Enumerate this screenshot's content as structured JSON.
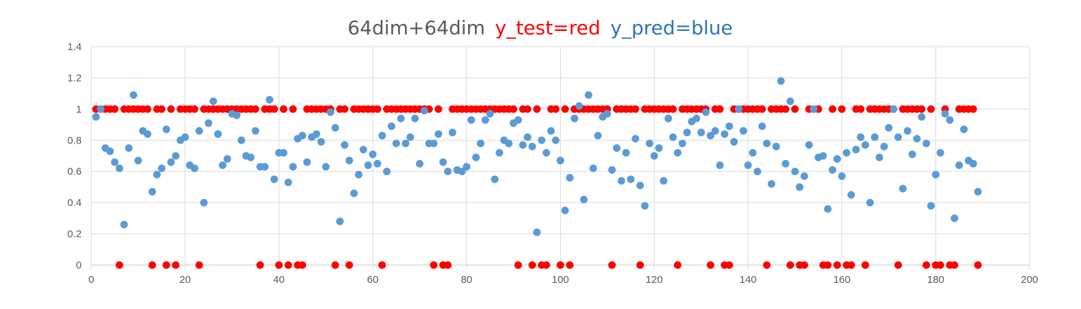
{
  "colors": {
    "y_test": "#ff0000",
    "y_pred": "#5b9bd5",
    "title_main": "#595959",
    "title_pred": "#2e75b6",
    "grid": "#d9d9d9",
    "tick_label": "#595959"
  },
  "chart_data": {
    "type": "scatter",
    "title_parts": [
      "64dim+64dim",
      "y_test=red",
      "y_pred=blue"
    ],
    "xlabel": "",
    "ylabel": "",
    "xlim": [
      0,
      200
    ],
    "ylim": [
      0,
      1.4
    ],
    "x_ticks": [
      0,
      20,
      40,
      60,
      80,
      100,
      120,
      140,
      160,
      180,
      200
    ],
    "y_ticks": [
      0,
      0.2,
      0.4,
      0.6,
      0.8,
      1,
      1.2,
      1.4
    ],
    "y_tick_labels": [
      "0",
      "0.2",
      "0.4",
      "0.6",
      "0.8",
      "1",
      "1.2",
      "1.4"
    ],
    "grid": true,
    "series": [
      {
        "key": "y_test",
        "x": [
          1,
          2,
          3,
          4,
          5,
          6,
          7,
          8,
          9,
          10,
          11,
          12,
          13,
          14,
          15,
          16,
          17,
          18,
          19,
          20,
          21,
          22,
          23,
          24,
          25,
          26,
          27,
          28,
          29,
          30,
          31,
          32,
          33,
          34,
          35,
          36,
          37,
          38,
          39,
          40,
          41,
          42,
          43,
          44,
          45,
          46,
          47,
          48,
          49,
          50,
          51,
          52,
          53,
          54,
          55,
          56,
          57,
          58,
          59,
          60,
          61,
          62,
          63,
          64,
          65,
          66,
          67,
          68,
          69,
          70,
          71,
          72,
          73,
          74,
          75,
          76,
          77,
          78,
          79,
          80,
          81,
          82,
          83,
          84,
          85,
          86,
          87,
          88,
          89,
          90,
          91,
          92,
          93,
          94,
          95,
          96,
          97,
          98,
          99,
          100,
          101,
          102,
          103,
          104,
          105,
          106,
          107,
          108,
          109,
          110,
          111,
          112,
          113,
          114,
          115,
          116,
          117,
          118,
          119,
          120,
          121,
          122,
          123,
          124,
          125,
          126,
          127,
          128,
          129,
          130,
          131,
          132,
          133,
          134,
          135,
          136,
          137,
          138,
          139,
          140,
          141,
          142,
          143,
          144,
          145,
          146,
          147,
          148,
          149,
          150,
          151,
          152,
          153,
          154,
          155,
          156,
          157,
          158,
          159,
          160,
          161,
          162,
          163,
          164,
          165,
          166,
          167,
          168,
          169,
          170,
          171,
          172,
          173,
          174,
          175,
          176,
          177,
          178,
          179,
          180,
          181,
          182,
          183,
          184,
          185,
          186,
          187,
          188,
          189
        ],
        "y": [
          1,
          1,
          1,
          1,
          1,
          0,
          1,
          1,
          1,
          1,
          1,
          1,
          0,
          1,
          1,
          0,
          1,
          0,
          1,
          1,
          1,
          1,
          0,
          1,
          1,
          1,
          1,
          1,
          1,
          1,
          1,
          1,
          1,
          1,
          1,
          0,
          1,
          1,
          1,
          0,
          1,
          0,
          1,
          0,
          0,
          1,
          1,
          1,
          1,
          1,
          1,
          0,
          1,
          1,
          0,
          1,
          1,
          1,
          1,
          1,
          1,
          0,
          1,
          1,
          1,
          1,
          1,
          1,
          1,
          1,
          1,
          1,
          0,
          1,
          0,
          0,
          1,
          1,
          1,
          1,
          1,
          1,
          1,
          1,
          1,
          1,
          1,
          1,
          1,
          1,
          0,
          1,
          1,
          0,
          1,
          0,
          0,
          1,
          1,
          0,
          1,
          0,
          1,
          1,
          1,
          1,
          1,
          1,
          1,
          1,
          0,
          1,
          1,
          1,
          1,
          1,
          0,
          1,
          1,
          1,
          1,
          1,
          1,
          1,
          0,
          1,
          1,
          1,
          1,
          1,
          1,
          0,
          1,
          1,
          0,
          0,
          1,
          1,
          1,
          1,
          1,
          1,
          1,
          0,
          1,
          1,
          1,
          1,
          0,
          1,
          0,
          0,
          1,
          1,
          1,
          0,
          0,
          1,
          0,
          1,
          0,
          0,
          1,
          1,
          0,
          1,
          1,
          1,
          1,
          1,
          1,
          0,
          1,
          1,
          1,
          1,
          1,
          0,
          1,
          0,
          0,
          1,
          0,
          0,
          1,
          1,
          1,
          1,
          0
        ]
      },
      {
        "key": "y_pred",
        "x": [
          1,
          2,
          3,
          4,
          5,
          6,
          7,
          8,
          9,
          10,
          11,
          12,
          13,
          14,
          15,
          16,
          17,
          18,
          19,
          20,
          21,
          22,
          23,
          24,
          25,
          26,
          27,
          28,
          29,
          30,
          31,
          32,
          33,
          34,
          35,
          36,
          37,
          38,
          39,
          40,
          41,
          42,
          43,
          44,
          45,
          46,
          47,
          48,
          49,
          50,
          51,
          52,
          53,
          54,
          55,
          56,
          57,
          58,
          59,
          60,
          61,
          62,
          63,
          64,
          65,
          66,
          67,
          68,
          69,
          70,
          71,
          72,
          73,
          74,
          75,
          76,
          77,
          78,
          79,
          80,
          81,
          82,
          83,
          84,
          85,
          86,
          87,
          88,
          89,
          90,
          91,
          92,
          93,
          94,
          95,
          96,
          97,
          98,
          99,
          100,
          101,
          102,
          103,
          104,
          105,
          106,
          107,
          108,
          109,
          110,
          111,
          112,
          113,
          114,
          115,
          116,
          117,
          118,
          119,
          120,
          121,
          122,
          123,
          124,
          125,
          126,
          127,
          128,
          129,
          130,
          131,
          132,
          133,
          134,
          135,
          136,
          137,
          138,
          139,
          140,
          141,
          142,
          143,
          144,
          145,
          146,
          147,
          148,
          149,
          150,
          151,
          152,
          153,
          154,
          155,
          156,
          157,
          158,
          159,
          160,
          161,
          162,
          163,
          164,
          165,
          166,
          167,
          168,
          169,
          170,
          171,
          172,
          173,
          174,
          175,
          176,
          177,
          178,
          179,
          180,
          181,
          182,
          183,
          184,
          185,
          186,
          187,
          188,
          189
        ],
        "y": [
          0.95,
          1.0,
          0.75,
          0.73,
          0.66,
          0.62,
          0.26,
          0.75,
          1.09,
          0.67,
          0.86,
          0.84,
          0.47,
          0.58,
          0.62,
          0.87,
          0.66,
          0.7,
          0.8,
          0.82,
          0.64,
          0.62,
          0.86,
          0.4,
          0.91,
          1.05,
          0.84,
          0.64,
          0.68,
          0.97,
          0.96,
          0.8,
          0.7,
          0.69,
          0.86,
          0.63,
          0.63,
          1.06,
          0.55,
          0.72,
          0.72,
          0.53,
          0.63,
          0.81,
          0.83,
          0.66,
          0.82,
          0.84,
          0.79,
          0.63,
          0.98,
          0.88,
          0.28,
          0.77,
          0.67,
          0.46,
          0.58,
          0.74,
          0.64,
          0.71,
          0.65,
          0.83,
          0.6,
          0.89,
          0.78,
          0.94,
          0.78,
          0.82,
          0.94,
          0.65,
          0.99,
          0.78,
          0.78,
          0.84,
          0.66,
          0.6,
          0.85,
          0.61,
          0.6,
          0.63,
          0.93,
          0.69,
          0.78,
          0.93,
          0.97,
          0.55,
          0.72,
          0.8,
          0.78,
          0.91,
          0.93,
          0.77,
          0.82,
          0.76,
          0.21,
          0.8,
          0.72,
          0.86,
          0.8,
          0.67,
          0.35,
          0.56,
          0.94,
          1.02,
          0.42,
          1.09,
          0.62,
          0.83,
          0.95,
          0.97,
          0.61,
          0.75,
          0.54,
          0.72,
          0.55,
          0.81,
          0.51,
          0.38,
          0.78,
          0.7,
          0.75,
          0.54,
          0.94,
          0.82,
          0.72,
          0.78,
          0.85,
          0.92,
          0.94,
          0.85,
          0.98,
          0.83,
          0.86,
          0.64,
          0.84,
          0.89,
          0.79,
          1.0,
          0.86,
          0.64,
          0.72,
          0.6,
          0.89,
          0.78,
          0.52,
          0.76,
          1.18,
          0.65,
          1.05,
          0.6,
          0.5,
          0.57,
          0.77,
          1.0,
          0.69,
          0.7,
          0.36,
          0.61,
          0.68,
          0.57,
          0.72,
          0.45,
          0.74,
          0.82,
          0.77,
          0.4,
          0.82,
          0.69,
          0.76,
          0.88,
          1.0,
          0.82,
          0.49,
          0.86,
          0.71,
          0.81,
          0.95,
          0.78,
          0.38,
          0.58,
          0.72,
          0.97,
          0.93,
          0.3,
          0.64,
          0.87,
          0.67,
          0.65,
          0.47
        ]
      }
    ]
  }
}
